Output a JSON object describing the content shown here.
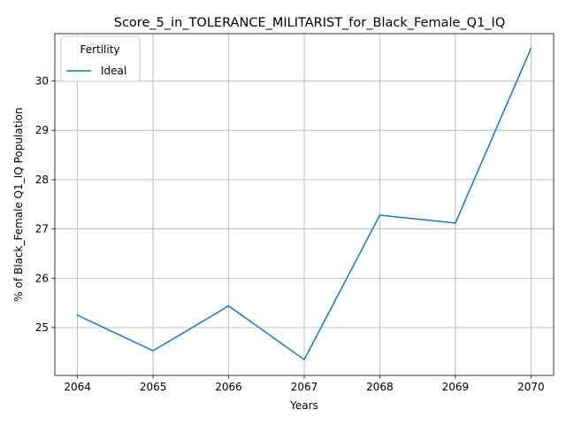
{
  "chart_data": {
    "type": "line",
    "title": "Score_5_in_TOLERANCE_MILITARIST_for_Black_Female_Q1_IQ",
    "xlabel": "Years",
    "ylabel": "% of Black_Female Q1_IQ Population",
    "x": [
      2064,
      2065,
      2066,
      2067,
      2068,
      2069,
      2070
    ],
    "x_tick_labels": [
      "2064",
      "2065",
      "2066",
      "2067",
      "2068",
      "2069",
      "2070"
    ],
    "y_ticks": [
      25,
      26,
      27,
      28,
      29,
      30
    ],
    "y_tick_labels": [
      "25",
      "26",
      "27",
      "28",
      "29",
      "30"
    ],
    "xlim": [
      2063.7,
      2070.3
    ],
    "ylim": [
      24.03,
      30.96
    ],
    "grid": true,
    "legend": {
      "title": "Fertility",
      "placement": "upper left"
    },
    "series": [
      {
        "name": "Ideal",
        "color": "#1f77b4",
        "values": [
          25.25,
          24.53,
          25.44,
          24.35,
          27.28,
          27.12,
          30.66
        ]
      }
    ]
  }
}
